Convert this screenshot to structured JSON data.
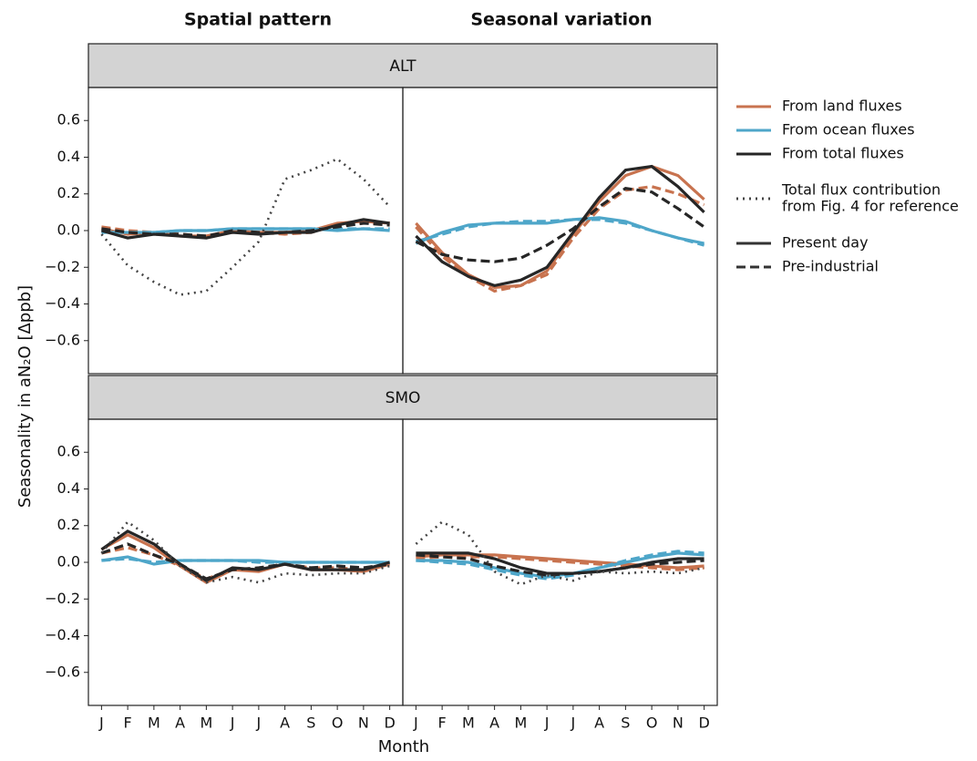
{
  "column_titles": [
    "Spatial pattern",
    "Seasonal variation"
  ],
  "row_labels": [
    "ALT",
    "SMO"
  ],
  "y_label": "Seasonality in aN₂O [Δppb]",
  "x_label": "Month",
  "legend": [
    {
      "label": [
        "From land fluxes"
      ],
      "color": "#c8734f",
      "style": "solid"
    },
    {
      "label": [
        "From ocean fluxes"
      ],
      "color": "#4ea6c9",
      "style": "solid"
    },
    {
      "label": [
        "From total fluxes"
      ],
      "color": "#262626",
      "style": "solid"
    },
    {
      "label": [
        "Total flux contribution",
        "from Fig. 4 for reference"
      ],
      "color": "#444444",
      "style": "dotted"
    },
    {
      "label": [
        "Present day"
      ],
      "color": "#333333",
      "style": "solid"
    },
    {
      "label": [
        "Pre-industrial"
      ],
      "color": "#333333",
      "style": "dashed"
    }
  ],
  "chart_data": [
    {
      "type": "line",
      "categories": [
        "J",
        "F",
        "M",
        "A",
        "M",
        "J",
        "J",
        "A",
        "S",
        "O",
        "N",
        "D"
      ],
      "ylim": [
        -0.78,
        0.78
      ],
      "yticks": [
        0.6,
        0.4,
        0.2,
        {
          "value": 0,
          "label": "0.0"
        },
        {
          "value": -0.2,
          "label": "−0.2"
        },
        {
          "value": -0.4,
          "label": "−0.4"
        },
        {
          "value": -0.6,
          "label": "−0.6"
        }
      ],
      "series": [
        {
          "name": "From land fluxes",
          "style": "dashed",
          "color": "#c8734f",
          "values": [
            0.02,
            0.0,
            -0.01,
            -0.02,
            -0.03,
            -0.01,
            -0.01,
            -0.02,
            -0.01,
            0.03,
            0.04,
            0.04
          ]
        },
        {
          "name": "From land fluxes",
          "style": "solid",
          "color": "#c8734f",
          "values": [
            0.01,
            -0.02,
            -0.01,
            -0.03,
            -0.03,
            0.0,
            -0.01,
            -0.01,
            0.0,
            0.04,
            0.05,
            0.04
          ]
        },
        {
          "name": "From ocean fluxes",
          "style": "dashed",
          "color": "#4ea6c9",
          "values": [
            0.0,
            -0.01,
            -0.01,
            0.0,
            0.0,
            0.01,
            0.01,
            0.01,
            0.01,
            0.01,
            0.01,
            0.01
          ]
        },
        {
          "name": "From ocean fluxes",
          "style": "solid",
          "color": "#4ea6c9",
          "values": [
            -0.01,
            -0.01,
            -0.01,
            0.0,
            0.0,
            0.01,
            0.01,
            0.01,
            0.01,
            0.0,
            0.01,
            0.0
          ]
        },
        {
          "name": "From total fluxes",
          "style": "dashed",
          "color": "#262626",
          "values": [
            0.01,
            -0.01,
            -0.02,
            -0.02,
            -0.03,
            0.0,
            -0.01,
            -0.01,
            0.0,
            0.02,
            0.04,
            0.03
          ]
        },
        {
          "name": "From total fluxes",
          "style": "solid",
          "color": "#262626",
          "values": [
            0.0,
            -0.04,
            -0.02,
            -0.03,
            -0.04,
            -0.01,
            -0.02,
            -0.01,
            -0.01,
            0.03,
            0.06,
            0.04
          ]
        },
        {
          "name": "Total flux contribution from Fig. 4 for reference",
          "style": "dotted",
          "color": "#444444",
          "values": [
            -0.02,
            -0.19,
            -0.28,
            -0.35,
            -0.33,
            -0.2,
            -0.06,
            0.28,
            0.33,
            0.39,
            0.28,
            0.13
          ]
        }
      ]
    },
    {
      "type": "line",
      "categories": [
        "J",
        "F",
        "M",
        "A",
        "M",
        "J",
        "J",
        "A",
        "S",
        "O",
        "N",
        "D"
      ],
      "ylim": [
        -0.78,
        0.78
      ],
      "series": [
        {
          "name": "From land fluxes",
          "style": "dashed",
          "color": "#c8734f",
          "values": [
            0.02,
            -0.14,
            -0.25,
            -0.33,
            -0.3,
            -0.24,
            -0.04,
            0.12,
            0.22,
            0.24,
            0.2,
            0.14
          ]
        },
        {
          "name": "From land fluxes",
          "style": "solid",
          "color": "#c8734f",
          "values": [
            0.04,
            -0.12,
            -0.24,
            -0.31,
            -0.3,
            -0.22,
            -0.02,
            0.16,
            0.3,
            0.35,
            0.3,
            0.17
          ]
        },
        {
          "name": "From ocean fluxes",
          "style": "dashed",
          "color": "#4ea6c9",
          "values": [
            -0.06,
            -0.02,
            0.02,
            0.04,
            0.05,
            0.05,
            0.06,
            0.06,
            0.04,
            0.0,
            -0.04,
            -0.08
          ]
        },
        {
          "name": "From ocean fluxes",
          "style": "solid",
          "color": "#4ea6c9",
          "values": [
            -0.07,
            -0.01,
            0.03,
            0.04,
            0.04,
            0.04,
            0.06,
            0.07,
            0.05,
            0.0,
            -0.04,
            -0.07
          ]
        },
        {
          "name": "From total fluxes",
          "style": "dashed",
          "color": "#262626",
          "values": [
            -0.06,
            -0.13,
            -0.16,
            -0.17,
            -0.15,
            -0.08,
            0.01,
            0.13,
            0.23,
            0.21,
            0.12,
            0.02
          ]
        },
        {
          "name": "From total fluxes",
          "style": "solid",
          "color": "#262626",
          "values": [
            -0.03,
            -0.17,
            -0.25,
            -0.3,
            -0.27,
            -0.2,
            -0.01,
            0.18,
            0.33,
            0.35,
            0.24,
            0.1
          ]
        }
      ]
    },
    {
      "type": "line",
      "categories": [
        "J",
        "F",
        "M",
        "A",
        "M",
        "J",
        "J",
        "A",
        "S",
        "O",
        "N",
        "D"
      ],
      "ylim": [
        -0.78,
        0.78
      ],
      "yticks": [
        0.6,
        0.4,
        0.2,
        {
          "value": 0,
          "label": "0.0"
        },
        {
          "value": -0.2,
          "label": "−0.2"
        },
        {
          "value": -0.4,
          "label": "−0.4"
        },
        {
          "value": -0.6,
          "label": "−0.6"
        }
      ],
      "series": [
        {
          "name": "From land fluxes",
          "style": "dashed",
          "color": "#c8734f",
          "values": [
            0.05,
            0.08,
            0.04,
            -0.02,
            -0.09,
            -0.04,
            -0.04,
            -0.01,
            -0.03,
            -0.03,
            -0.04,
            -0.01
          ]
        },
        {
          "name": "From land fluxes",
          "style": "solid",
          "color": "#c8734f",
          "values": [
            0.07,
            0.15,
            0.08,
            -0.02,
            -0.11,
            -0.04,
            -0.05,
            -0.01,
            -0.04,
            -0.04,
            -0.05,
            -0.01
          ]
        },
        {
          "name": "From ocean fluxes",
          "style": "dashed",
          "color": "#4ea6c9",
          "values": [
            0.01,
            0.02,
            0.0,
            0.01,
            0.01,
            0.01,
            0.0,
            0.0,
            0.0,
            0.0,
            0.0,
            0.0
          ]
        },
        {
          "name": "From ocean fluxes",
          "style": "solid",
          "color": "#4ea6c9",
          "values": [
            0.01,
            0.03,
            -0.01,
            0.01,
            0.01,
            0.01,
            0.01,
            0.0,
            0.0,
            0.0,
            0.0,
            0.0
          ]
        },
        {
          "name": "From total fluxes",
          "style": "dashed",
          "color": "#262626",
          "values": [
            0.05,
            0.1,
            0.04,
            -0.01,
            -0.09,
            -0.04,
            -0.03,
            -0.01,
            -0.03,
            -0.02,
            -0.03,
            -0.01
          ]
        },
        {
          "name": "From total fluxes",
          "style": "solid",
          "color": "#262626",
          "values": [
            0.07,
            0.17,
            0.1,
            -0.01,
            -0.1,
            -0.03,
            -0.04,
            -0.01,
            -0.04,
            -0.04,
            -0.04,
            0.0
          ]
        },
        {
          "name": "Total flux contribution from Fig. 4 for reference",
          "style": "dotted",
          "color": "#444444",
          "values": [
            0.05,
            0.22,
            0.12,
            -0.02,
            -0.11,
            -0.08,
            -0.11,
            -0.06,
            -0.07,
            -0.06,
            -0.06,
            -0.02
          ]
        }
      ]
    },
    {
      "type": "line",
      "categories": [
        "J",
        "F",
        "M",
        "A",
        "M",
        "J",
        "J",
        "A",
        "S",
        "O",
        "N",
        "D"
      ],
      "ylim": [
        -0.78,
        0.78
      ],
      "series": [
        {
          "name": "From land fluxes",
          "style": "dashed",
          "color": "#c8734f",
          "values": [
            0.02,
            0.03,
            0.03,
            0.03,
            0.02,
            0.01,
            0.0,
            -0.01,
            -0.02,
            -0.03,
            -0.04,
            -0.03
          ]
        },
        {
          "name": "From land fluxes",
          "style": "solid",
          "color": "#c8734f",
          "values": [
            0.03,
            0.04,
            0.04,
            0.04,
            0.03,
            0.02,
            0.01,
            0.0,
            -0.01,
            -0.02,
            -0.03,
            -0.02
          ]
        },
        {
          "name": "From ocean fluxes",
          "style": "dashed",
          "color": "#4ea6c9",
          "values": [
            0.01,
            0.0,
            -0.01,
            -0.04,
            -0.07,
            -0.09,
            -0.07,
            -0.03,
            0.01,
            0.04,
            0.06,
            0.05
          ]
        },
        {
          "name": "From ocean fluxes",
          "style": "solid",
          "color": "#4ea6c9",
          "values": [
            0.01,
            0.01,
            0.0,
            -0.03,
            -0.06,
            -0.08,
            -0.06,
            -0.03,
            0.0,
            0.03,
            0.05,
            0.04
          ]
        },
        {
          "name": "From total fluxes",
          "style": "dashed",
          "color": "#262626",
          "values": [
            0.04,
            0.03,
            0.02,
            -0.02,
            -0.05,
            -0.07,
            -0.06,
            -0.05,
            -0.03,
            -0.01,
            0.0,
            0.01
          ]
        },
        {
          "name": "From total fluxes",
          "style": "solid",
          "color": "#262626",
          "values": [
            0.05,
            0.05,
            0.05,
            0.02,
            -0.03,
            -0.06,
            -0.06,
            -0.05,
            -0.03,
            0.0,
            0.02,
            0.02
          ]
        },
        {
          "name": "Total flux contribution from Fig. 4 for reference",
          "style": "dotted",
          "color": "#444444",
          "values": [
            0.1,
            0.22,
            0.15,
            -0.05,
            -0.12,
            -0.07,
            -0.1,
            -0.05,
            -0.06,
            -0.05,
            -0.06,
            -0.03
          ]
        }
      ]
    }
  ]
}
